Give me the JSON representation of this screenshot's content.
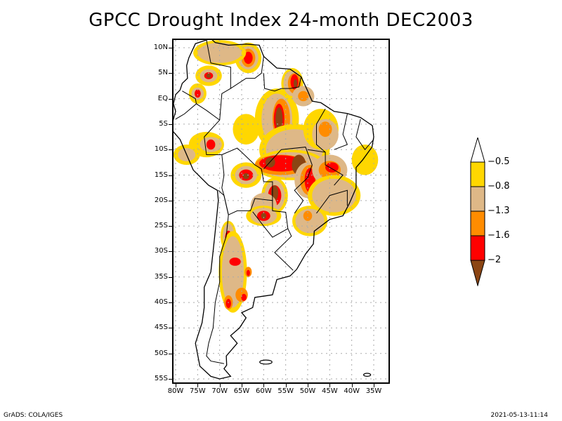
{
  "title": "GPCC Drought Index 24-month DEC2003",
  "map": {
    "lat_labels": [
      "10N",
      "5N",
      "EQ",
      "5S",
      "10S",
      "15S",
      "20S",
      "25S",
      "30S",
      "35S",
      "40S",
      "45S",
      "50S",
      "55S"
    ],
    "lon_labels": [
      "80W",
      "75W",
      "70W",
      "65W",
      "60W",
      "55W",
      "50W",
      "45W",
      "40W",
      "35W"
    ],
    "lat_range": [
      -55.5,
      11
    ],
    "lon_range": [
      -81,
      -33.5
    ],
    "grid": "dotted"
  },
  "legend": {
    "labels": [
      "-0.5",
      "-0.8",
      "-1.3",
      "-1.6",
      "-2"
    ],
    "colors": {
      "above_-0.5": "#ffffff",
      "-0.8_to_-0.5": "#ffd700",
      "-1.3_to_-0.8": "#deb887",
      "-1.6_to_-1.3": "#ff8c00",
      "-2_to_-1.6": "#ff0000",
      "below_-2": "#8b4513"
    }
  },
  "footer": {
    "left": "GrADS: COLA/IGES",
    "right": "2021-05-13-11:14"
  }
}
